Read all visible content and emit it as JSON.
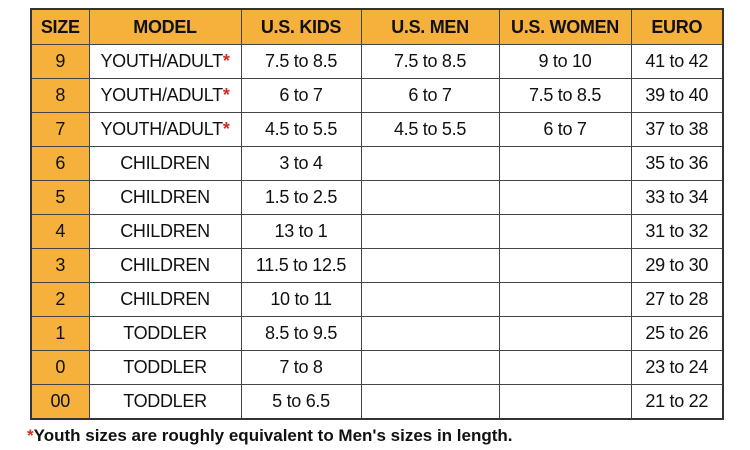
{
  "table": {
    "headers": [
      "SIZE",
      "MODEL",
      "U.S. KIDS",
      "U.S. MEN",
      "U.S. WOMEN",
      "EURO"
    ],
    "rows": [
      [
        "9",
        {
          "text": "YOUTH/ADULT",
          "mark": "*"
        },
        "7.5 to 8.5",
        "7.5 to 8.5",
        "9 to 10",
        "41 to 42"
      ],
      [
        "8",
        {
          "text": "YOUTH/ADULT",
          "mark": "*"
        },
        "6 to 7",
        "6 to 7",
        "7.5 to 8.5",
        "39 to 40"
      ],
      [
        "7",
        {
          "text": "YOUTH/ADULT",
          "mark": "*"
        },
        "4.5 to 5.5",
        "4.5 to 5.5",
        "6 to 7",
        "37 to 38"
      ],
      [
        "6",
        "CHILDREN",
        "3 to 4",
        null,
        null,
        "35 to 36"
      ],
      [
        "5",
        "CHILDREN",
        "1.5 to 2.5",
        null,
        null,
        "33 to 34"
      ],
      [
        "4",
        "CHILDREN",
        "13 to 1",
        null,
        null,
        "31 to 32"
      ],
      [
        "3",
        "CHILDREN",
        "11.5 to 12.5",
        null,
        null,
        "29 to 30"
      ],
      [
        "2",
        "CHILDREN",
        "10 to 11",
        null,
        null,
        "27 to 28"
      ],
      [
        "1",
        "TODDLER",
        "8.5 to 9.5",
        null,
        null,
        "25 to 26"
      ],
      [
        "0",
        "TODDLER",
        "7 to 8",
        null,
        null,
        "23 to 24"
      ],
      [
        "00",
        "TODDLER",
        "5 to 6.5",
        null,
        null,
        "21 to 22"
      ]
    ]
  },
  "footnote": {
    "mark": "*",
    "text": "Youth sizes are roughly equivalent to Men's sizes in length."
  }
}
